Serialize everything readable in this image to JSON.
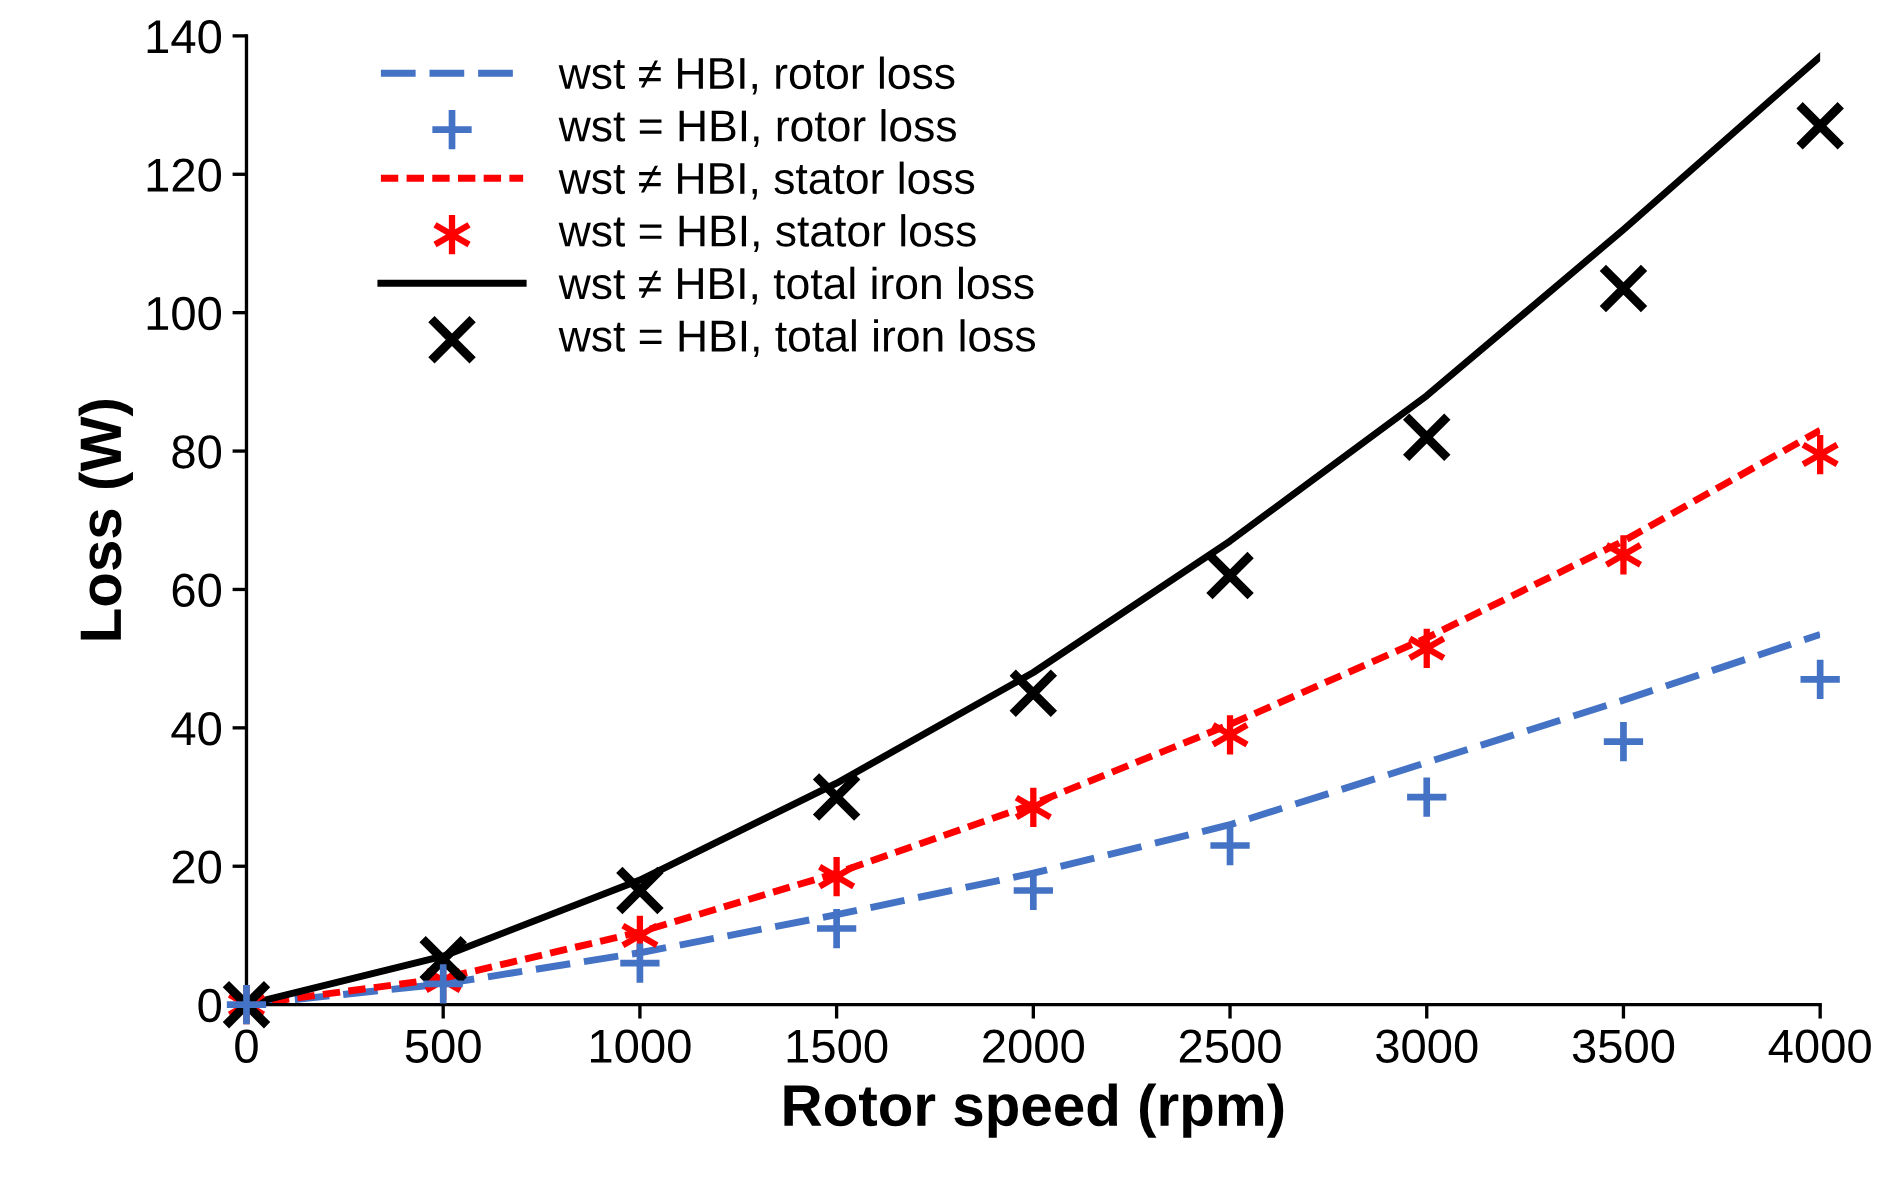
{
  "chart_data": {
    "type": "line",
    "xlabel": "Rotor speed (rpm)",
    "ylabel": "Loss (W)",
    "x": [
      0,
      500,
      1000,
      1500,
      2000,
      2500,
      3000,
      3500,
      4000
    ],
    "xlim": [
      0,
      4000
    ],
    "xticks": [
      0,
      500,
      1000,
      1500,
      2000,
      2500,
      3000,
      3500,
      4000
    ],
    "ylim": [
      0,
      140
    ],
    "yticks": [
      0,
      20,
      40,
      60,
      80,
      100,
      120,
      140
    ],
    "grid": false,
    "legend": "top left",
    "series": [
      {
        "name": "wst ≠ HBI, rotor loss",
        "color": "#4472c4",
        "line_style": "dashed",
        "marker": "none",
        "values": [
          0,
          3,
          7.5,
          13,
          19,
          26,
          35,
          44,
          53.5
        ]
      },
      {
        "name": "wst = HBI, rotor loss",
        "type": "scatter",
        "color": "#4472c4",
        "marker": "cross",
        "values": [
          0,
          3,
          6,
          11,
          16.5,
          23,
          30,
          38,
          47
        ]
      },
      {
        "name": "wst ≠ HBI, stator loss",
        "color": "#ff0000",
        "line_style": "dashed",
        "marker": "none",
        "values": [
          0,
          3.8,
          10.5,
          19,
          29,
          40.5,
          53,
          67,
          83
        ]
      },
      {
        "name": "wst = HBI, stator loss",
        "type": "scatter",
        "color": "#ff0000",
        "marker": "cross",
        "values": [
          0,
          3.5,
          10,
          18.5,
          28.5,
          39,
          51.5,
          65,
          79.5
        ]
      },
      {
        "name": "wst ≠ HBI, total iron loss",
        "color": "#000000",
        "line_style": "solid",
        "marker": "none",
        "values": [
          0,
          7,
          18,
          32,
          48,
          67,
          88,
          112,
          137
        ]
      },
      {
        "name": "wst = HBI, total iron loss",
        "type": "scatter",
        "color": "#000000",
        "marker": "cross",
        "values": [
          0,
          6.5,
          16.5,
          30,
          45,
          62,
          82,
          103.5,
          127
        ]
      }
    ]
  }
}
